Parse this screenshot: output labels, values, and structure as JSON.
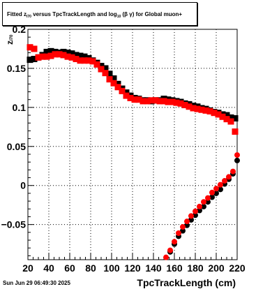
{
  "title": {
    "prefix": "Fitted",
    "z": "z",
    "z_sub": "I70",
    "mid": "versus TpcTrackLength and log",
    "log_sub": "10",
    "beta_gamma": "(β  γ)",
    "suffix": "for Global muon+"
  },
  "timestamp": "Sun Jun 29 06:49:30 2025",
  "x_axis_title": "TpcTrackLength (cm)",
  "y_axis_title": {
    "main": "z",
    "sub": "I70"
  },
  "chart_data": {
    "type": "scatter",
    "title": "Fitted z_I70 versus TpcTrackLength and log10(β γ) for Global muon+",
    "xlabel": "TpcTrackLength (cm)",
    "ylabel": "z_I70",
    "xlim": [
      20,
      220
    ],
    "ylim": [
      -0.095,
      0.2
    ],
    "x_ticks": [
      20,
      40,
      60,
      80,
      100,
      120,
      140,
      160,
      180,
      200,
      220
    ],
    "y_ticks": [
      -0.05,
      0,
      0.05,
      0.1,
      0.15,
      0.2
    ],
    "y_tick_labels": [
      "−0.05",
      "0",
      "0.05",
      "0.1",
      "0.15",
      "0.2"
    ],
    "grid": true,
    "series": [
      {
        "color": "#000000",
        "marker": "square",
        "x": [
          22,
          26,
          30,
          34,
          38,
          42,
          46,
          50,
          54,
          58,
          62,
          66,
          70,
          74,
          78,
          82,
          86,
          90,
          94,
          98,
          102,
          106,
          110,
          114,
          118,
          122,
          126,
          130,
          134,
          138,
          142,
          146,
          150,
          154,
          158,
          162,
          166,
          170,
          174,
          178,
          182,
          186,
          190,
          194,
          198,
          202,
          206,
          210,
          214,
          218
        ],
        "y": [
          0.161,
          0.162,
          0.164,
          0.167,
          0.171,
          0.172,
          0.171,
          0.17,
          0.171,
          0.17,
          0.169,
          0.167,
          0.166,
          0.165,
          0.163,
          0.16,
          0.157,
          0.153,
          0.15,
          0.143,
          0.137,
          0.13,
          0.124,
          0.119,
          0.115,
          0.112,
          0.111,
          0.109,
          0.109,
          0.108,
          0.109,
          0.109,
          0.111,
          0.11,
          0.109,
          0.108,
          0.107,
          0.105,
          0.104,
          0.102,
          0.101,
          0.099,
          0.098,
          0.096,
          0.094,
          0.093,
          0.091,
          0.09,
          0.087,
          0.086
        ]
      },
      {
        "color": "#000000",
        "marker": "circle",
        "x": [
          156,
          160,
          164,
          168,
          172,
          176,
          180,
          184,
          188,
          192,
          196,
          200,
          204,
          208,
          212,
          216,
          220
        ],
        "y": [
          -0.085,
          -0.075,
          -0.065,
          -0.058,
          -0.051,
          -0.044,
          -0.038,
          -0.032,
          -0.027,
          -0.021,
          -0.015,
          -0.01,
          -0.005,
          0.002,
          0.008,
          0.015,
          0.032
        ]
      },
      {
        "color": "#ff0000",
        "marker": "square",
        "x": [
          22,
          26,
          30,
          34,
          38,
          42,
          46,
          50,
          54,
          58,
          62,
          66,
          70,
          74,
          78,
          82,
          86,
          90,
          94,
          98,
          102,
          106,
          110,
          114,
          118,
          122,
          126,
          130,
          134,
          138,
          142,
          146,
          150,
          154,
          158,
          162,
          166,
          170,
          174,
          178,
          182,
          186,
          190,
          194,
          198,
          202,
          206,
          210,
          214,
          218
        ],
        "y": [
          0.177,
          0.175,
          0.164,
          0.165,
          0.165,
          0.166,
          0.168,
          0.168,
          0.167,
          0.165,
          0.164,
          0.162,
          0.16,
          0.16,
          0.16,
          0.159,
          0.155,
          0.149,
          0.144,
          0.136,
          0.131,
          0.126,
          0.121,
          0.115,
          0.112,
          0.11,
          0.11,
          0.108,
          0.108,
          0.109,
          0.109,
          0.108,
          0.108,
          0.107,
          0.107,
          0.106,
          0.105,
          0.103,
          0.101,
          0.099,
          0.098,
          0.097,
          0.096,
          0.095,
          0.093,
          0.091,
          0.088,
          0.085,
          0.082,
          0.069
        ]
      },
      {
        "color": "#ff0000",
        "marker": "circle",
        "x": [
          152,
          156,
          160,
          164,
          168,
          172,
          176,
          180,
          184,
          188,
          192,
          196,
          200,
          204,
          208,
          212,
          216,
          220
        ],
        "y": [
          -0.092,
          -0.083,
          -0.072,
          -0.061,
          -0.053,
          -0.046,
          -0.039,
          -0.033,
          -0.027,
          -0.021,
          -0.016,
          -0.009,
          -0.004,
          0.001,
          0.006,
          0.011,
          0.018,
          0.039
        ]
      }
    ]
  }
}
